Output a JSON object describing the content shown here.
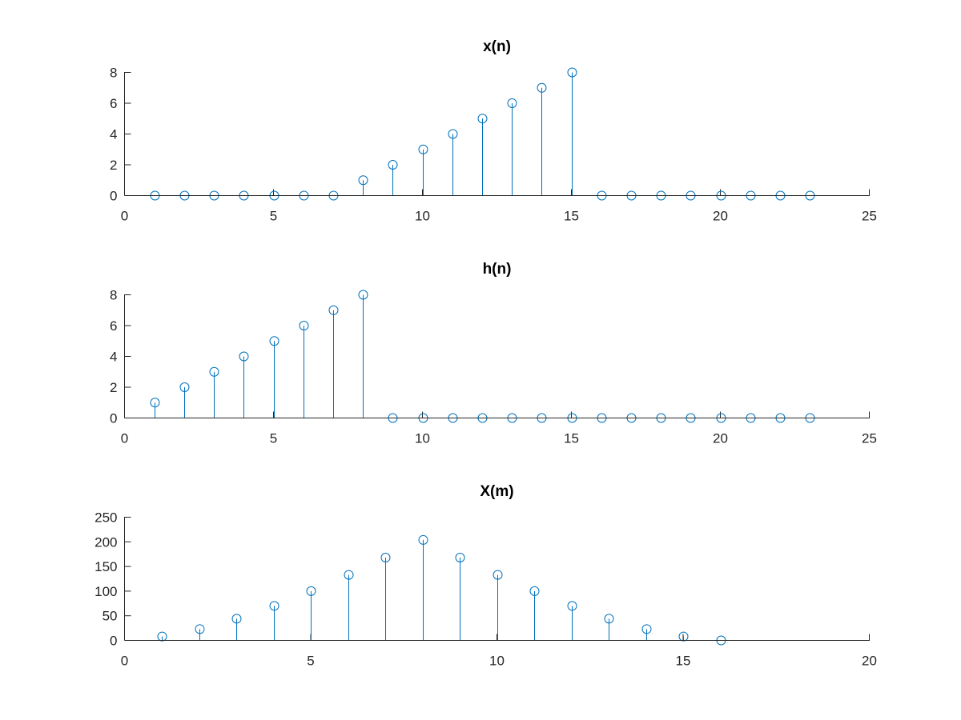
{
  "chart_data": [
    {
      "type": "stem",
      "title": "x(n)",
      "xlabel": "",
      "ylabel": "",
      "xlim": [
        0,
        25
      ],
      "ylim": [
        0,
        8
      ],
      "xticks": [
        0,
        5,
        10,
        15,
        20,
        25
      ],
      "yticks": [
        0,
        2,
        4,
        6,
        8
      ],
      "grid": false,
      "color": "#0072BD",
      "x": [
        1,
        2,
        3,
        4,
        5,
        6,
        7,
        8,
        9,
        10,
        11,
        12,
        13,
        14,
        15,
        16,
        17,
        18,
        19,
        20,
        21,
        22,
        23
      ],
      "y": [
        0,
        0,
        0,
        0,
        0,
        0,
        0,
        1,
        2,
        3,
        4,
        5,
        6,
        7,
        8,
        0,
        0,
        0,
        0,
        0,
        0,
        0,
        0
      ]
    },
    {
      "type": "stem",
      "title": "h(n)",
      "xlabel": "",
      "ylabel": "",
      "xlim": [
        0,
        25
      ],
      "ylim": [
        0,
        8
      ],
      "xticks": [
        0,
        5,
        10,
        15,
        20,
        25
      ],
      "yticks": [
        0,
        2,
        4,
        6,
        8
      ],
      "grid": false,
      "color": "#0072BD",
      "x": [
        1,
        2,
        3,
        4,
        5,
        6,
        7,
        8,
        9,
        10,
        11,
        12,
        13,
        14,
        15,
        16,
        17,
        18,
        19,
        20,
        21,
        22,
        23
      ],
      "y": [
        1,
        2,
        3,
        4,
        5,
        6,
        7,
        8,
        0,
        0,
        0,
        0,
        0,
        0,
        0,
        0,
        0,
        0,
        0,
        0,
        0,
        0,
        0
      ]
    },
    {
      "type": "stem",
      "title": "X(m)",
      "xlabel": "",
      "ylabel": "",
      "xlim": [
        0,
        20
      ],
      "ylim": [
        0,
        250
      ],
      "xticks": [
        0,
        5,
        10,
        15,
        20
      ],
      "yticks": [
        0,
        50,
        100,
        150,
        200,
        250
      ],
      "grid": false,
      "color": "#0072BD",
      "x": [
        1,
        2,
        3,
        4,
        5,
        6,
        7,
        8,
        9,
        10,
        11,
        12,
        13,
        14,
        15,
        16
      ],
      "y": [
        8,
        23,
        44,
        70,
        100,
        133,
        168,
        204,
        168,
        133,
        100,
        70,
        44,
        23,
        8,
        0
      ]
    }
  ]
}
